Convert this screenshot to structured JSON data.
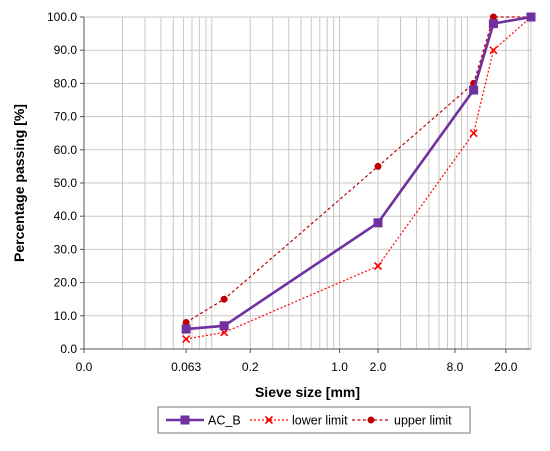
{
  "chart_data": {
    "type": "line",
    "xlabel": "Sieve size [mm]",
    "ylabel": "Percentage passing  [%]",
    "x_scale": "log",
    "xlim": [
      0.01,
      31.5
    ],
    "ylim": [
      0,
      100
    ],
    "x_ticks": [
      {
        "value": 0.01,
        "label": "0.0"
      },
      {
        "value": 0.063,
        "label": "0.063"
      },
      {
        "value": 0.2,
        "label": "0.2"
      },
      {
        "value": 1.0,
        "label": "1.0"
      },
      {
        "value": 2.0,
        "label": "2.0"
      },
      {
        "value": 8.0,
        "label": "8.0"
      },
      {
        "value": 20.0,
        "label": "20.0"
      }
    ],
    "y_ticks": [
      {
        "value": 0,
        "label": "0.0"
      },
      {
        "value": 10,
        "label": "10.0"
      },
      {
        "value": 20,
        "label": "20.0"
      },
      {
        "value": 30,
        "label": "30.0"
      },
      {
        "value": 40,
        "label": "40.0"
      },
      {
        "value": 50,
        "label": "50.0"
      },
      {
        "value": 60,
        "label": "60.0"
      },
      {
        "value": 70,
        "label": "70.0"
      },
      {
        "value": 80,
        "label": "80.0"
      },
      {
        "value": 90,
        "label": "90.0"
      },
      {
        "value": 100,
        "label": "100.0"
      }
    ],
    "grid": true,
    "legend": "bottom",
    "series": [
      {
        "name": "AC_B",
        "color": "#7030a0",
        "marker": "square",
        "line": "solid",
        "x": [
          0.063,
          0.125,
          2.0,
          11.2,
          16.0,
          31.5
        ],
        "y": [
          6,
          7,
          38,
          78,
          98,
          100
        ]
      },
      {
        "name": "lower limit",
        "color": "#ff0000",
        "marker": "x",
        "line": "dotted",
        "x": [
          0.063,
          0.125,
          2.0,
          11.2,
          16.0,
          31.5
        ],
        "y": [
          3,
          5,
          25,
          65,
          90,
          100
        ]
      },
      {
        "name": "upper limit",
        "color": "#c00000",
        "marker": "circle",
        "line": "dashed",
        "x": [
          0.063,
          0.125,
          2.0,
          11.2,
          16.0,
          31.5
        ],
        "y": [
          8,
          15,
          55,
          80,
          100,
          100
        ]
      }
    ]
  }
}
